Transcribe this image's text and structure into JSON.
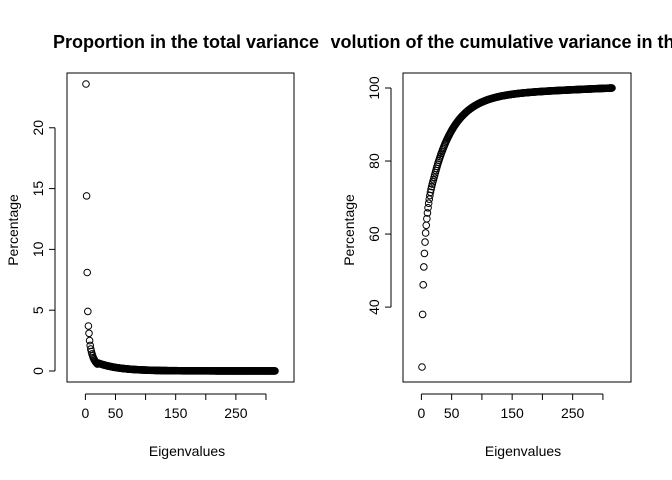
{
  "chart_data": [
    {
      "type": "scatter",
      "title": "Proportion in the total variance",
      "xlabel": "Eigenvalues",
      "ylabel": "Percentage",
      "xlim": [
        1,
        315
      ],
      "ylim": [
        0,
        23.6
      ],
      "xticks": [
        0,
        50,
        150,
        250
      ],
      "xtick_labels": [
        "0",
        "50",
        "150",
        "250"
      ],
      "yticks": [
        0,
        5,
        10,
        15,
        20
      ],
      "ytick_labels": [
        "0",
        "5",
        "10",
        "15",
        "20"
      ],
      "grid": false,
      "legend": "none",
      "n_points": 315,
      "first_values": [
        23.6,
        14.4,
        8.1,
        4.9,
        3.7,
        3.1,
        2.5,
        2.1,
        1.8,
        1.6,
        1.4,
        1.25,
        1.1,
        1.0,
        0.9,
        0.82,
        0.75,
        0.68,
        0.62,
        0.57
      ],
      "x": [],
      "y": []
    },
    {
      "type": "scatter",
      "title": "Evolution of the cumulative variance in the total",
      "xlabel": "Eigenvalues",
      "ylabel": "Percentage",
      "xlim": [
        1,
        315
      ],
      "ylim": [
        23.6,
        100
      ],
      "xticks": [
        0,
        50,
        150,
        250
      ],
      "xtick_labels": [
        "0",
        "50",
        "150",
        "250"
      ],
      "yticks": [
        40,
        60,
        80,
        100
      ],
      "ytick_labels": [
        "40",
        "60",
        "80",
        "100"
      ],
      "grid": false,
      "legend": "none",
      "n_points": 315,
      "x": [],
      "y": []
    }
  ]
}
